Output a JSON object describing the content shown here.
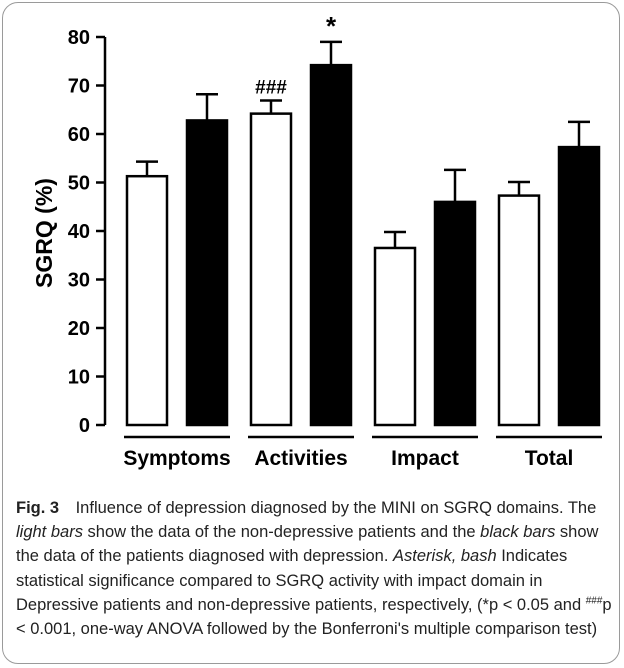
{
  "chart_data": {
    "type": "bar",
    "ylabel": "SGRQ (%)",
    "xlabel": "",
    "ylim": [
      0,
      80
    ],
    "yticks": [
      "0",
      "10",
      "20",
      "30",
      "40",
      "50",
      "60",
      "70",
      "80"
    ],
    "categories": [
      "Symptoms",
      "Activities",
      "Impact",
      "Total"
    ],
    "series": [
      {
        "fill": "#ffffff",
        "values": [
          51.3,
          64.2,
          36.5,
          47.3
        ],
        "errors": [
          3.0,
          2.7,
          3.3,
          2.8
        ],
        "annotations": [
          "",
          "###",
          "",
          ""
        ]
      },
      {
        "fill": "#000000",
        "values": [
          62.8,
          74.2,
          46.0,
          57.3
        ],
        "errors": [
          5.4,
          4.8,
          6.6,
          5.2
        ],
        "annotations": [
          "",
          "*",
          "",
          ""
        ]
      }
    ]
  },
  "caption": {
    "label": "Fig. 3",
    "t1": "Influence of depression diagnosed by the MINI on SGRQ domains. The ",
    "light_bars": "light bars",
    "t2": " show the data of the non-depressive patients and the ",
    "black_bars": "black bars",
    "t3": " show the data of the patients diagnosed with depression. ",
    "asterisk_bash": "Asterisk, bash",
    "t4": " Indicates statistical significance compared to SGRQ activity with impact domain in Depressive patients and non-depressive patients, respectively, (*p < 0.05 and ",
    "hash_sup": "###",
    "t5": "p < 0.001, one-way ANOVA followed by the Bonferroni's multiple comparison test)"
  }
}
